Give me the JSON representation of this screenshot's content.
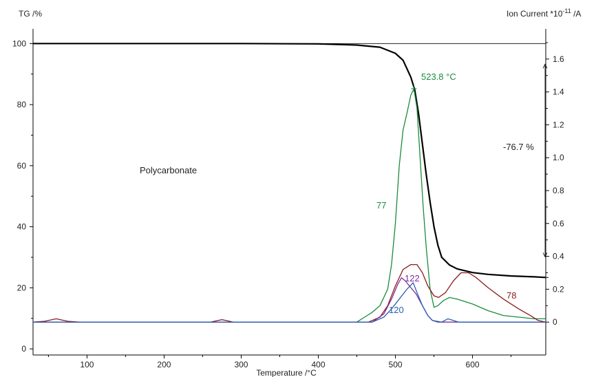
{
  "chart_data": {
    "type": "line",
    "title": "",
    "xlabel": "Temperature /°C",
    "ylabel_left": "TG /%",
    "ylabel_right_main": "Ion Current *10",
    "ylabel_right_exp": "-11",
    "ylabel_right_unit": " /A",
    "xlim": [
      30,
      695
    ],
    "ylim_left": [
      -2,
      103
    ],
    "ylim_right": [
      -0.2,
      1.75
    ],
    "x_ticks": [
      100,
      200,
      300,
      400,
      500,
      600
    ],
    "y_left_ticks": [
      0,
      20,
      40,
      60,
      80,
      100
    ],
    "y_right_ticks": [
      0,
      0.2,
      0.4,
      0.6,
      0.8,
      1.0,
      1.2,
      1.4,
      1.6
    ],
    "y_right_tick_labels": [
      "0",
      "0.2",
      "0.4",
      "0.6",
      "0.8",
      "1.0",
      "1.2",
      "1.4",
      "1.6"
    ],
    "grid": false,
    "colors": {
      "tg": "#000000",
      "m77": "#1a8a3c",
      "m78": "#8b1a1a",
      "m122": "#7b2d9a",
      "m120": "#2a5fb0",
      "axis": "#000000",
      "text": "#222222"
    },
    "sample_label": "Polycarbonate",
    "series": [
      {
        "id": "tg",
        "axis": "left",
        "width": 2.2,
        "points": [
          [
            30,
            100
          ],
          [
            100,
            100
          ],
          [
            200,
            100
          ],
          [
            300,
            100
          ],
          [
            400,
            99.9
          ],
          [
            450,
            99.5
          ],
          [
            480,
            98.8
          ],
          [
            500,
            96.8
          ],
          [
            510,
            94.5
          ],
          [
            520,
            89
          ],
          [
            525,
            85
          ],
          [
            530,
            77
          ],
          [
            535,
            67
          ],
          [
            540,
            57
          ],
          [
            545,
            48
          ],
          [
            550,
            40
          ],
          [
            555,
            34
          ],
          [
            560,
            30
          ],
          [
            570,
            27.5
          ],
          [
            580,
            26.2
          ],
          [
            600,
            25
          ],
          [
            620,
            24.4
          ],
          [
            650,
            23.9
          ],
          [
            680,
            23.6
          ],
          [
            695,
            23.4
          ]
        ]
      },
      {
        "id": "m77",
        "axis": "right",
        "width": 1.3,
        "points": [
          [
            30,
            0
          ],
          [
            450,
            0
          ],
          [
            460,
            0.03
          ],
          [
            470,
            0.06
          ],
          [
            480,
            0.1
          ],
          [
            490,
            0.2
          ],
          [
            495,
            0.35
          ],
          [
            500,
            0.6
          ],
          [
            505,
            0.95
          ],
          [
            510,
            1.17
          ],
          [
            515,
            1.27
          ],
          [
            520,
            1.38
          ],
          [
            524,
            1.42
          ],
          [
            528,
            1.3
          ],
          [
            532,
            1.0
          ],
          [
            536,
            0.7
          ],
          [
            540,
            0.45
          ],
          [
            545,
            0.2
          ],
          [
            550,
            0.09
          ],
          [
            555,
            0.1
          ],
          [
            562,
            0.13
          ],
          [
            570,
            0.15
          ],
          [
            580,
            0.14
          ],
          [
            600,
            0.11
          ],
          [
            620,
            0.07
          ],
          [
            640,
            0.04
          ],
          [
            660,
            0.03
          ],
          [
            680,
            0.02
          ],
          [
            695,
            0.02
          ]
        ]
      },
      {
        "id": "m78",
        "axis": "right",
        "width": 1.3,
        "points": [
          [
            30,
            0
          ],
          [
            45,
            0.005
          ],
          [
            60,
            0.02
          ],
          [
            75,
            0.005
          ],
          [
            90,
            0
          ],
          [
            260,
            0
          ],
          [
            275,
            0.015
          ],
          [
            290,
            0
          ],
          [
            465,
            0
          ],
          [
            480,
            0.03
          ],
          [
            490,
            0.1
          ],
          [
            500,
            0.22
          ],
          [
            510,
            0.32
          ],
          [
            520,
            0.35
          ],
          [
            528,
            0.35
          ],
          [
            535,
            0.3
          ],
          [
            542,
            0.22
          ],
          [
            550,
            0.16
          ],
          [
            556,
            0.15
          ],
          [
            565,
            0.18
          ],
          [
            575,
            0.25
          ],
          [
            585,
            0.3
          ],
          [
            595,
            0.3
          ],
          [
            605,
            0.27
          ],
          [
            620,
            0.21
          ],
          [
            640,
            0.14
          ],
          [
            660,
            0.08
          ],
          [
            675,
            0.04
          ],
          [
            685,
            0.01
          ],
          [
            695,
            0
          ]
        ]
      },
      {
        "id": "m122",
        "axis": "right",
        "width": 1.3,
        "points": [
          [
            30,
            0
          ],
          [
            470,
            0
          ],
          [
            485,
            0.05
          ],
          [
            495,
            0.14
          ],
          [
            503,
            0.23
          ],
          [
            508,
            0.27
          ],
          [
            513,
            0.25
          ],
          [
            520,
            0.21
          ],
          [
            527,
            0.17
          ],
          [
            535,
            0.1
          ],
          [
            542,
            0.04
          ],
          [
            548,
            0.01
          ],
          [
            555,
            0
          ],
          [
            695,
            0
          ]
        ]
      },
      {
        "id": "m120",
        "axis": "right",
        "width": 1.3,
        "points": [
          [
            30,
            0
          ],
          [
            470,
            0
          ],
          [
            485,
            0.03
          ],
          [
            495,
            0.08
          ],
          [
            505,
            0.14
          ],
          [
            515,
            0.2
          ],
          [
            523,
            0.24
          ],
          [
            528,
            0.18
          ],
          [
            535,
            0.1
          ],
          [
            542,
            0.04
          ],
          [
            548,
            0.01
          ],
          [
            560,
            0
          ],
          [
            568,
            0.02
          ],
          [
            575,
            0.01
          ],
          [
            582,
            0
          ],
          [
            695,
            0
          ]
        ]
      }
    ],
    "annotations": {
      "peak_temp": "523.8 °C",
      "mass_loss": "-76.7 %",
      "label_77": "77",
      "label_78": "78",
      "label_122": "122",
      "label_120": "120"
    }
  }
}
